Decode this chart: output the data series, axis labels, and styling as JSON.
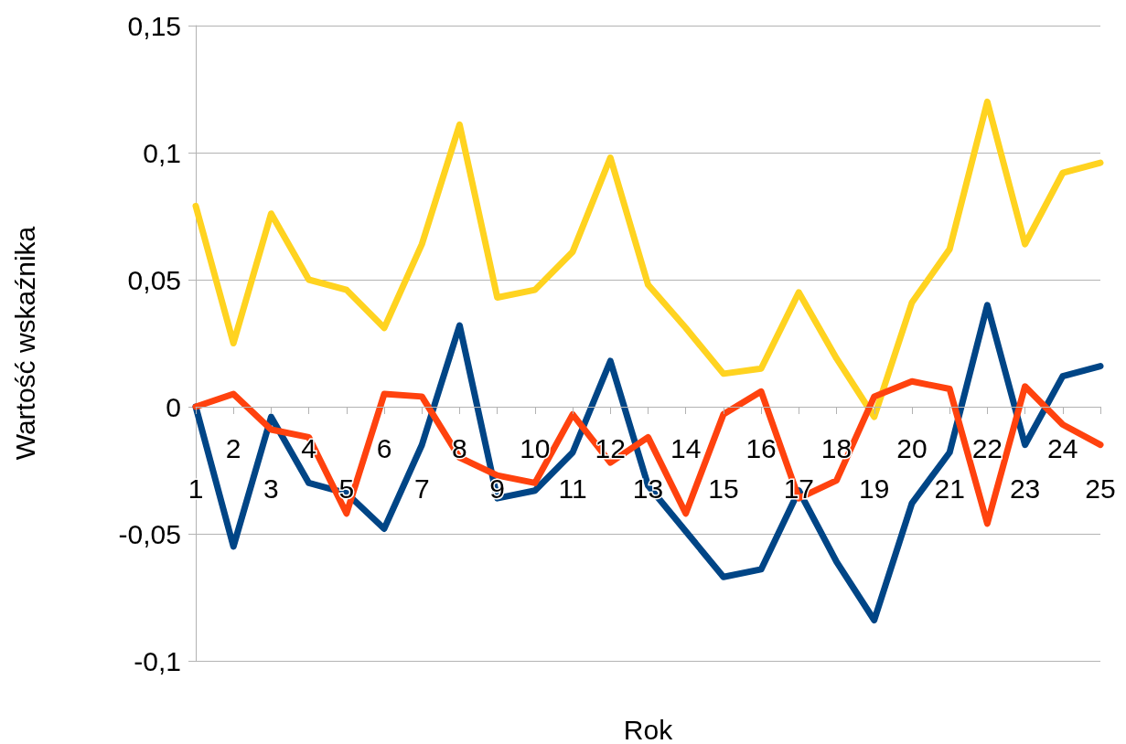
{
  "chart_data": {
    "type": "line",
    "xlabel": "Rok",
    "ylabel": "Wartość wskaźnika",
    "categories": [
      "1",
      "2",
      "3",
      "4",
      "5",
      "6",
      "7",
      "8",
      "9",
      "10",
      "11",
      "12",
      "13",
      "14",
      "15",
      "16",
      "17",
      "18",
      "19",
      "20",
      "21",
      "22",
      "23",
      "24",
      "25"
    ],
    "series": [
      {
        "color": "#ffd320",
        "values": [
          0.079,
          0.025,
          0.076,
          0.05,
          0.046,
          0.031,
          0.064,
          0.111,
          0.043,
          0.046,
          0.061,
          0.098,
          0.048,
          0.031,
          0.013,
          0.015,
          0.045,
          0.019,
          -0.004,
          0.041,
          0.062,
          0.12,
          0.064,
          0.092,
          0.096
        ]
      },
      {
        "color": "#004586",
        "values": [
          0,
          -0.055,
          -0.004,
          -0.03,
          -0.034,
          -0.048,
          -0.015,
          0.032,
          -0.036,
          -0.033,
          -0.018,
          0.018,
          -0.031,
          -0.049,
          -0.067,
          -0.064,
          -0.033,
          -0.061,
          -0.084,
          -0.038,
          -0.018,
          0.04,
          -0.015,
          0.012,
          0.016
        ]
      },
      {
        "color": "#ff420e",
        "values": [
          0,
          0.005,
          -0.009,
          -0.012,
          -0.042,
          0.005,
          0.004,
          -0.02,
          -0.027,
          -0.03,
          -0.003,
          -0.022,
          -0.012,
          -0.042,
          -0.003,
          0.006,
          -0.036,
          -0.029,
          0.004,
          0.01,
          0.007,
          -0.046,
          0.008,
          -0.007,
          -0.015
        ]
      }
    ],
    "ylim": [
      -0.1,
      0.15
    ],
    "yticks": [
      {
        "value": -0.1,
        "label": "-0,1"
      },
      {
        "value": -0.05,
        "label": "-0,05"
      },
      0,
      {
        "value": 0.05,
        "label": "0,05"
      },
      {
        "value": 0.1,
        "label": "0,1"
      },
      {
        "value": 0.15,
        "label": "0,15"
      }
    ],
    "grid": "y"
  }
}
